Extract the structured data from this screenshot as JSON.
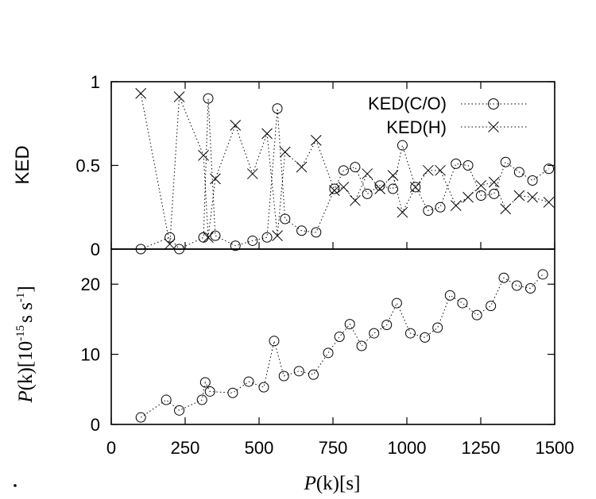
{
  "chart_data": [
    {
      "type": "line",
      "panel": "top",
      "ylabel": "KED",
      "xlim": [
        0,
        1500
      ],
      "ylim": [
        0,
        1
      ],
      "yticks": [
        0,
        0.5,
        1
      ],
      "ytick_labels": [
        "0",
        "0.5",
        "1"
      ],
      "legend_position": "top-right",
      "series": [
        {
          "name": "KED(C/O)",
          "marker": "circle",
          "x": [
            100,
            198,
            230,
            312,
            328,
            352,
            420,
            478,
            527,
            562,
            588,
            644,
            693,
            755,
            786,
            825,
            866,
            909,
            953,
            985,
            1029,
            1072,
            1113,
            1166,
            1207,
            1251,
            1295,
            1334,
            1380,
            1425,
            1480
          ],
          "y": [
            0.0,
            0.07,
            0.0,
            0.07,
            0.9,
            0.08,
            0.02,
            0.05,
            0.07,
            0.84,
            0.18,
            0.11,
            0.1,
            0.36,
            0.47,
            0.49,
            0.33,
            0.38,
            0.36,
            0.62,
            0.37,
            0.23,
            0.25,
            0.51,
            0.5,
            0.32,
            0.33,
            0.52,
            0.46,
            0.41,
            0.48
          ]
        },
        {
          "name": "KED(H)",
          "marker": "cross",
          "x": [
            100,
            198,
            230,
            312,
            328,
            352,
            420,
            478,
            527,
            562,
            588,
            644,
            693,
            755,
            786,
            825,
            866,
            909,
            953,
            985,
            1029,
            1072,
            1113,
            1166,
            1207,
            1251,
            1295,
            1334,
            1380,
            1425,
            1480
          ],
          "y": [
            0.93,
            0.03,
            0.91,
            0.56,
            0.07,
            0.42,
            0.74,
            0.45,
            0.69,
            0.08,
            0.58,
            0.49,
            0.65,
            0.35,
            0.37,
            0.29,
            0.45,
            0.36,
            0.44,
            0.22,
            0.37,
            0.47,
            0.47,
            0.26,
            0.31,
            0.38,
            0.4,
            0.24,
            0.32,
            0.31,
            0.28
          ]
        }
      ]
    },
    {
      "type": "line",
      "panel": "bottom",
      "xlabel_var": "P",
      "xlabel_arg": "(k)",
      "xlabel_unit": "[s]",
      "ylabel_var": "P",
      "ylabel_arg": "(k)",
      "ylabel_unit_pre": "[10",
      "ylabel_unit_exp1": "-15",
      "ylabel_unit_mid": "s s",
      "ylabel_unit_exp2": "-1",
      "ylabel_unit_post": "]",
      "xlim": [
        0,
        1500
      ],
      "ylim": [
        0,
        25
      ],
      "xticks": [
        0,
        250,
        500,
        750,
        1000,
        1250,
        1500
      ],
      "xtick_labels": [
        "0",
        "250",
        "500",
        "750",
        "1000",
        "1250",
        "1500"
      ],
      "yticks": [
        0,
        10,
        20
      ],
      "ytick_labels": [
        "0",
        "10",
        "20"
      ],
      "series": [
        {
          "marker": "circle",
          "x": [
            100,
            186,
            230,
            307,
            318,
            334,
            411,
            465,
            516,
            551,
            584,
            635,
            684,
            734,
            772,
            807,
            847,
            889,
            932,
            966,
            1012,
            1061,
            1104,
            1146,
            1188,
            1237,
            1284,
            1328,
            1372,
            1418,
            1460
          ],
          "y": [
            1.0,
            3.5,
            2.0,
            3.5,
            6.0,
            4.7,
            4.5,
            6.1,
            5.3,
            11.9,
            6.9,
            7.6,
            7.1,
            10.2,
            12.5,
            14.3,
            11.2,
            13.0,
            14.2,
            17.3,
            13.0,
            12.4,
            13.8,
            18.4,
            17.3,
            15.6,
            16.9,
            20.9,
            19.8,
            19.4,
            21.4
          ]
        }
      ]
    }
  ]
}
